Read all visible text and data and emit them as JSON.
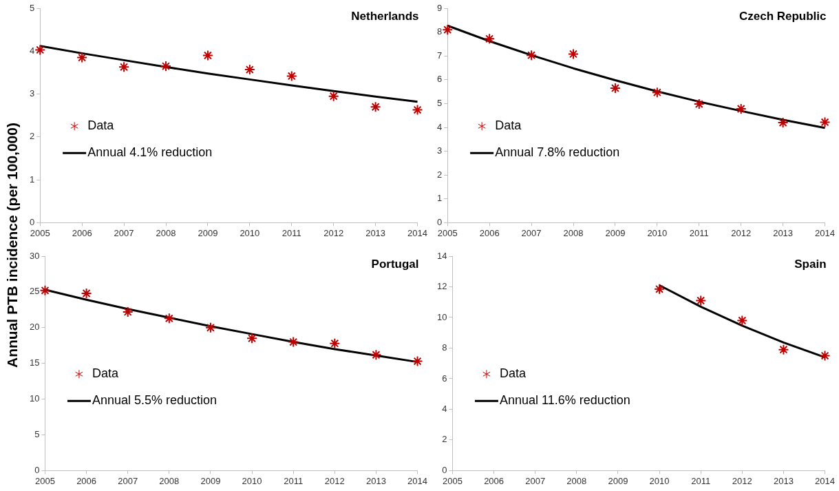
{
  "chart_data": [
    {
      "type": "line",
      "title": "Netherlands",
      "ylabel": "Annual PTB incidence (per 100,000)",
      "legend": "left",
      "categories": [
        "2005",
        "2006",
        "2007",
        "2008",
        "2009",
        "2010",
        "2011",
        "2012",
        "2013",
        "2014"
      ],
      "ylim": [
        0,
        5
      ],
      "yticks": [
        0,
        1,
        2,
        3,
        4,
        5
      ],
      "series": [
        {
          "name": "Data",
          "type": "scatter",
          "marker": "cross",
          "color": "#c00000",
          "values": [
            4.03,
            3.85,
            3.63,
            3.65,
            3.9,
            3.57,
            3.42,
            2.95,
            2.7,
            2.63
          ]
        },
        {
          "name": "Annual 4.1% reduction",
          "type": "line",
          "color": "#000000",
          "values": [
            4.12,
            3.95,
            3.79,
            3.63,
            3.48,
            3.34,
            3.2,
            3.07,
            2.94,
            2.82
          ]
        }
      ]
    },
    {
      "type": "line",
      "title": "Czech Republic",
      "legend": "left",
      "categories": [
        "2005",
        "2006",
        "2007",
        "2008",
        "2009",
        "2010",
        "2011",
        "2012",
        "2013",
        "2014"
      ],
      "ylim": [
        0,
        9
      ],
      "yticks": [
        0,
        1,
        2,
        3,
        4,
        5,
        6,
        7,
        8,
        9
      ],
      "series": [
        {
          "name": "Data",
          "type": "scatter",
          "marker": "cross",
          "color": "#c00000",
          "values": [
            8.1,
            7.72,
            7.03,
            7.08,
            5.65,
            5.47,
            4.98,
            4.78,
            4.2,
            4.22
          ]
        },
        {
          "name": "Annual 7.8% reduction",
          "type": "line",
          "color": "#000000",
          "values": [
            8.27,
            7.62,
            7.03,
            6.48,
            5.98,
            5.51,
            5.08,
            4.69,
            4.32,
            3.98
          ]
        }
      ]
    },
    {
      "type": "line",
      "title": "Portugal",
      "legend": "left",
      "categories": [
        "2005",
        "2006",
        "2007",
        "2008",
        "2009",
        "2010",
        "2011",
        "2012",
        "2013",
        "2014"
      ],
      "ylim": [
        0,
        30
      ],
      "yticks": [
        0,
        5,
        10,
        15,
        20,
        25,
        30
      ],
      "series": [
        {
          "name": "Data",
          "type": "scatter",
          "marker": "cross",
          "color": "#c00000",
          "values": [
            25.2,
            24.8,
            22.2,
            21.3,
            20.0,
            18.5,
            18.0,
            17.8,
            16.2,
            15.3
          ]
        },
        {
          "name": "Annual 5.5% reduction",
          "type": "line",
          "color": "#000000",
          "values": [
            25.3,
            23.9,
            22.6,
            21.4,
            20.2,
            19.1,
            18.0,
            17.0,
            16.1,
            15.2
          ]
        }
      ]
    },
    {
      "type": "line",
      "title": "Spain",
      "legend": "left",
      "categories": [
        "2005",
        "2006",
        "2007",
        "2008",
        "2009",
        "2010",
        "2011",
        "2012",
        "2013",
        "2014"
      ],
      "ylim": [
        0,
        14
      ],
      "yticks": [
        0,
        2,
        4,
        6,
        8,
        10,
        12,
        14
      ],
      "series": [
        {
          "name": "Data",
          "type": "scatter",
          "marker": "cross",
          "color": "#c00000",
          "values": [
            null,
            null,
            null,
            null,
            null,
            11.85,
            11.1,
            9.8,
            7.9,
            7.5
          ]
        },
        {
          "name": "Annual 11.6% reduction",
          "type": "line",
          "color": "#000000",
          "values": [
            null,
            null,
            null,
            null,
            null,
            12.1,
            10.7,
            9.46,
            8.36,
            7.4
          ]
        }
      ]
    }
  ]
}
